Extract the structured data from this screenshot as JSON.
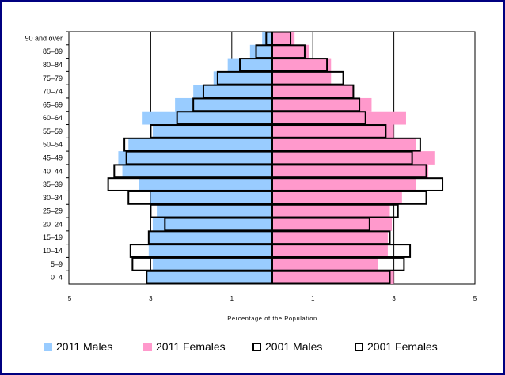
{
  "chart_data": {
    "type": "bar",
    "orientation": "horizontal",
    "subtype": "population-pyramid",
    "title": "",
    "xlabel": "Percentage of the Population",
    "ylabel": "",
    "x_tick_labels": [
      "5",
      "3",
      "1",
      "1",
      "3",
      "5"
    ],
    "xlim": [
      -5,
      5
    ],
    "grid": "vertical gridlines at 3 and 1 on each side",
    "legend_position": "bottom",
    "categories": [
      "0–4",
      "5–9",
      "10–14",
      "15–19",
      "20–24",
      "25–29",
      "30–34",
      "35–39",
      "40–44",
      "45–49",
      "50–54",
      "55–59",
      "60–64",
      "65–69",
      "70–74",
      "75–79",
      "80–84",
      "85–89",
      "90 and over"
    ],
    "series": [
      {
        "name": "2011 Males",
        "side": "left",
        "style": "filled",
        "color": "#99ccff",
        "values": [
          3.1,
          2.95,
          3.05,
          3.05,
          2.95,
          2.85,
          3.0,
          3.3,
          3.7,
          3.8,
          3.55,
          2.95,
          3.2,
          2.4,
          1.95,
          1.45,
          1.1,
          0.55,
          0.25
        ]
      },
      {
        "name": "2011 Females",
        "side": "right",
        "style": "filled",
        "color": "#ff99cc",
        "values": [
          3.0,
          2.6,
          2.85,
          2.85,
          2.95,
          2.9,
          3.2,
          3.55,
          3.85,
          4.0,
          3.55,
          3.0,
          3.3,
          2.45,
          2.0,
          1.45,
          1.45,
          0.9,
          0.55
        ]
      },
      {
        "name": "2001 Males",
        "side": "left",
        "style": "outline",
        "color": "#000000",
        "values": [
          3.1,
          3.45,
          3.5,
          3.05,
          2.65,
          3.0,
          3.55,
          4.05,
          3.9,
          3.6,
          3.65,
          3.0,
          2.35,
          1.95,
          1.7,
          1.35,
          0.8,
          0.4,
          0.15
        ]
      },
      {
        "name": "2001 Females",
        "side": "right",
        "style": "outline",
        "color": "#000000",
        "values": [
          2.9,
          3.25,
          3.4,
          2.9,
          2.4,
          3.1,
          3.8,
          4.2,
          3.8,
          3.45,
          3.65,
          2.8,
          2.3,
          2.15,
          2.0,
          1.75,
          1.35,
          0.8,
          0.45
        ]
      }
    ]
  },
  "legend": {
    "males_2011": "2011 Males",
    "females_2011": "2011 Females",
    "males_2001": "2001 Males",
    "females_2001": "2001 Females"
  },
  "colors": {
    "border": "#000080",
    "male": "#99ccff",
    "female": "#ff99cc"
  }
}
